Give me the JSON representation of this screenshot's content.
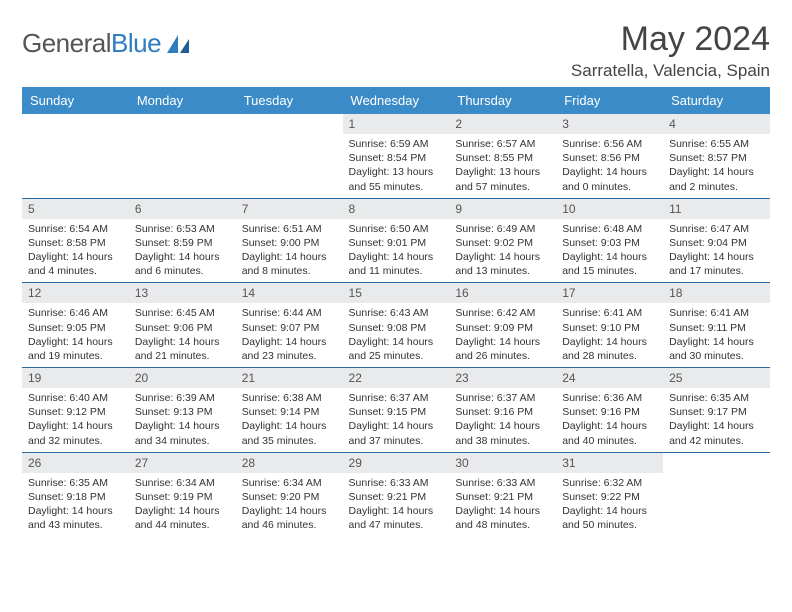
{
  "brand": {
    "part1": "General",
    "part2": "Blue"
  },
  "title": "May 2024",
  "location": "Sarratella, Valencia, Spain",
  "colors": {
    "header_bg": "#3b8bc8",
    "header_fg": "#ffffff",
    "daynum_bg": "#e9eaec",
    "row_border": "#2a6aa0",
    "brand_blue": "#2f7dc0"
  },
  "weekdays": [
    "Sunday",
    "Monday",
    "Tuesday",
    "Wednesday",
    "Thursday",
    "Friday",
    "Saturday"
  ],
  "weeks": [
    [
      {
        "n": "",
        "sr": "",
        "ss": "",
        "dl": ""
      },
      {
        "n": "",
        "sr": "",
        "ss": "",
        "dl": ""
      },
      {
        "n": "",
        "sr": "",
        "ss": "",
        "dl": ""
      },
      {
        "n": "1",
        "sr": "Sunrise: 6:59 AM",
        "ss": "Sunset: 8:54 PM",
        "dl": "Daylight: 13 hours and 55 minutes."
      },
      {
        "n": "2",
        "sr": "Sunrise: 6:57 AM",
        "ss": "Sunset: 8:55 PM",
        "dl": "Daylight: 13 hours and 57 minutes."
      },
      {
        "n": "3",
        "sr": "Sunrise: 6:56 AM",
        "ss": "Sunset: 8:56 PM",
        "dl": "Daylight: 14 hours and 0 minutes."
      },
      {
        "n": "4",
        "sr": "Sunrise: 6:55 AM",
        "ss": "Sunset: 8:57 PM",
        "dl": "Daylight: 14 hours and 2 minutes."
      }
    ],
    [
      {
        "n": "5",
        "sr": "Sunrise: 6:54 AM",
        "ss": "Sunset: 8:58 PM",
        "dl": "Daylight: 14 hours and 4 minutes."
      },
      {
        "n": "6",
        "sr": "Sunrise: 6:53 AM",
        "ss": "Sunset: 8:59 PM",
        "dl": "Daylight: 14 hours and 6 minutes."
      },
      {
        "n": "7",
        "sr": "Sunrise: 6:51 AM",
        "ss": "Sunset: 9:00 PM",
        "dl": "Daylight: 14 hours and 8 minutes."
      },
      {
        "n": "8",
        "sr": "Sunrise: 6:50 AM",
        "ss": "Sunset: 9:01 PM",
        "dl": "Daylight: 14 hours and 11 minutes."
      },
      {
        "n": "9",
        "sr": "Sunrise: 6:49 AM",
        "ss": "Sunset: 9:02 PM",
        "dl": "Daylight: 14 hours and 13 minutes."
      },
      {
        "n": "10",
        "sr": "Sunrise: 6:48 AM",
        "ss": "Sunset: 9:03 PM",
        "dl": "Daylight: 14 hours and 15 minutes."
      },
      {
        "n": "11",
        "sr": "Sunrise: 6:47 AM",
        "ss": "Sunset: 9:04 PM",
        "dl": "Daylight: 14 hours and 17 minutes."
      }
    ],
    [
      {
        "n": "12",
        "sr": "Sunrise: 6:46 AM",
        "ss": "Sunset: 9:05 PM",
        "dl": "Daylight: 14 hours and 19 minutes."
      },
      {
        "n": "13",
        "sr": "Sunrise: 6:45 AM",
        "ss": "Sunset: 9:06 PM",
        "dl": "Daylight: 14 hours and 21 minutes."
      },
      {
        "n": "14",
        "sr": "Sunrise: 6:44 AM",
        "ss": "Sunset: 9:07 PM",
        "dl": "Daylight: 14 hours and 23 minutes."
      },
      {
        "n": "15",
        "sr": "Sunrise: 6:43 AM",
        "ss": "Sunset: 9:08 PM",
        "dl": "Daylight: 14 hours and 25 minutes."
      },
      {
        "n": "16",
        "sr": "Sunrise: 6:42 AM",
        "ss": "Sunset: 9:09 PM",
        "dl": "Daylight: 14 hours and 26 minutes."
      },
      {
        "n": "17",
        "sr": "Sunrise: 6:41 AM",
        "ss": "Sunset: 9:10 PM",
        "dl": "Daylight: 14 hours and 28 minutes."
      },
      {
        "n": "18",
        "sr": "Sunrise: 6:41 AM",
        "ss": "Sunset: 9:11 PM",
        "dl": "Daylight: 14 hours and 30 minutes."
      }
    ],
    [
      {
        "n": "19",
        "sr": "Sunrise: 6:40 AM",
        "ss": "Sunset: 9:12 PM",
        "dl": "Daylight: 14 hours and 32 minutes."
      },
      {
        "n": "20",
        "sr": "Sunrise: 6:39 AM",
        "ss": "Sunset: 9:13 PM",
        "dl": "Daylight: 14 hours and 34 minutes."
      },
      {
        "n": "21",
        "sr": "Sunrise: 6:38 AM",
        "ss": "Sunset: 9:14 PM",
        "dl": "Daylight: 14 hours and 35 minutes."
      },
      {
        "n": "22",
        "sr": "Sunrise: 6:37 AM",
        "ss": "Sunset: 9:15 PM",
        "dl": "Daylight: 14 hours and 37 minutes."
      },
      {
        "n": "23",
        "sr": "Sunrise: 6:37 AM",
        "ss": "Sunset: 9:16 PM",
        "dl": "Daylight: 14 hours and 38 minutes."
      },
      {
        "n": "24",
        "sr": "Sunrise: 6:36 AM",
        "ss": "Sunset: 9:16 PM",
        "dl": "Daylight: 14 hours and 40 minutes."
      },
      {
        "n": "25",
        "sr": "Sunrise: 6:35 AM",
        "ss": "Sunset: 9:17 PM",
        "dl": "Daylight: 14 hours and 42 minutes."
      }
    ],
    [
      {
        "n": "26",
        "sr": "Sunrise: 6:35 AM",
        "ss": "Sunset: 9:18 PM",
        "dl": "Daylight: 14 hours and 43 minutes."
      },
      {
        "n": "27",
        "sr": "Sunrise: 6:34 AM",
        "ss": "Sunset: 9:19 PM",
        "dl": "Daylight: 14 hours and 44 minutes."
      },
      {
        "n": "28",
        "sr": "Sunrise: 6:34 AM",
        "ss": "Sunset: 9:20 PM",
        "dl": "Daylight: 14 hours and 46 minutes."
      },
      {
        "n": "29",
        "sr": "Sunrise: 6:33 AM",
        "ss": "Sunset: 9:21 PM",
        "dl": "Daylight: 14 hours and 47 minutes."
      },
      {
        "n": "30",
        "sr": "Sunrise: 6:33 AM",
        "ss": "Sunset: 9:21 PM",
        "dl": "Daylight: 14 hours and 48 minutes."
      },
      {
        "n": "31",
        "sr": "Sunrise: 6:32 AM",
        "ss": "Sunset: 9:22 PM",
        "dl": "Daylight: 14 hours and 50 minutes."
      },
      {
        "n": "",
        "sr": "",
        "ss": "",
        "dl": ""
      }
    ]
  ]
}
